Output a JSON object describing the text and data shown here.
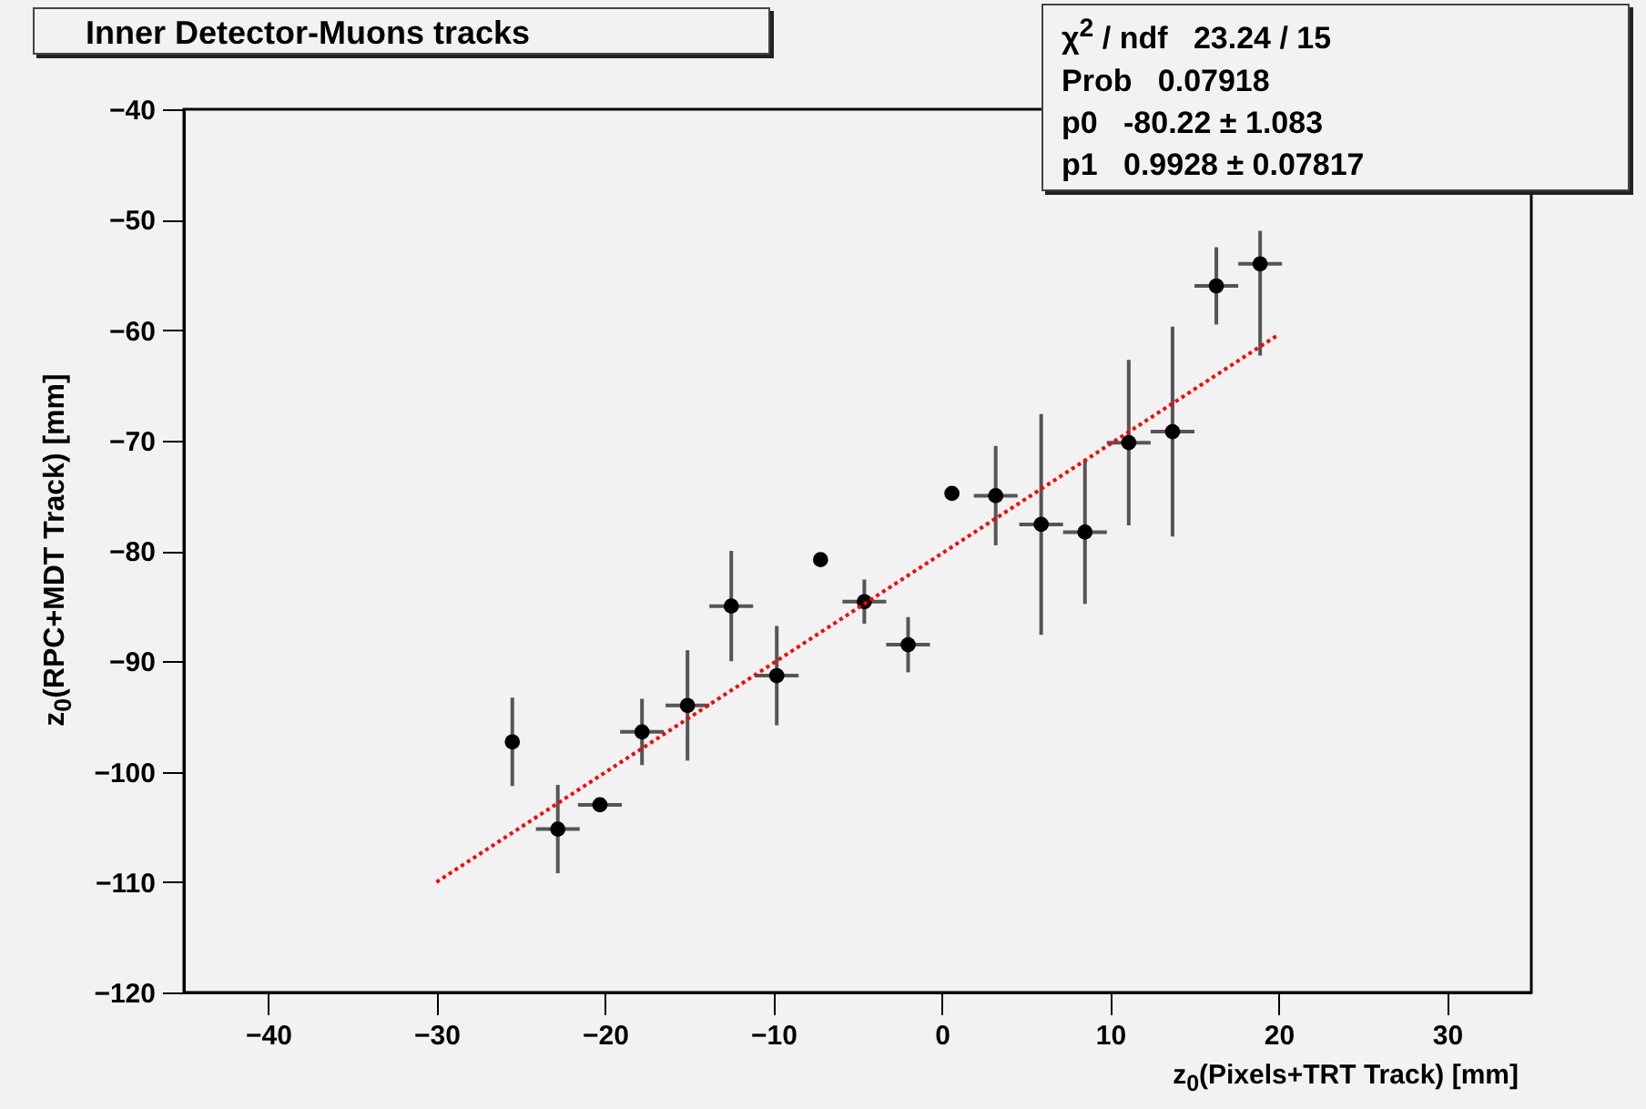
{
  "chart_data": {
    "type": "scatter",
    "title": "Inner Detector-Muons tracks",
    "xlabel": "z$_{0}$(Pixels+TRT Track) [mm]",
    "ylabel": "z$_{0}$(RPC+MDT Track) [mm]",
    "annotations": [
      "χ$^{2}$ / ndf   23.24 / 15",
      "Prob   0.07918",
      "p0   -80.22 ± 1.083",
      "p1   0.9928 ± 0.07817"
    ],
    "xlim": [
      -45,
      35
    ],
    "xticks": [
      -40,
      -30,
      -20,
      -10,
      0,
      10,
      20,
      30
    ],
    "ylim": [
      -120,
      -40
    ],
    "yticks": [
      -120,
      -110,
      -100,
      -90,
      -80,
      -70,
      -60,
      -50,
      -40
    ],
    "marker": "circle",
    "series": [
      {
        "color": "#000000",
        "x": [
          -25.5,
          -22.8,
          -20.3,
          -17.8,
          -15.1,
          -12.5,
          -9.8,
          -7.2,
          -4.6,
          -2.0,
          0.6,
          3.2,
          5.9,
          8.5,
          11.1,
          13.7,
          16.3,
          18.9
        ],
        "values": [
          -97.3,
          -105.2,
          -103.0,
          -96.4,
          -94.0,
          -85.0,
          -91.3,
          -80.8,
          -84.6,
          -88.5,
          -74.8,
          -75.0,
          -77.6,
          -78.3,
          -70.2,
          -69.2,
          -56.0,
          -54.0
        ],
        "errors": [
          4,
          4,
          null,
          3,
          5,
          5,
          4.5,
          null,
          2,
          2.5,
          null,
          4.5,
          10,
          6.5,
          7.5,
          9.5,
          3.5,
          [
            -62.3,
            -51
          ]
        ],
        "xerrors": [
          null,
          1.3,
          1.3,
          1.3,
          1.3,
          1.3,
          1.3,
          null,
          1.3,
          1.3,
          null,
          1.3,
          1.3,
          1.3,
          1.3,
          1.3,
          1.3,
          1.3
        ]
      },
      {
        "type": "line",
        "color": "#ff0000",
        "x": [
          -30,
          20
        ],
        "values": [
          -110.0,
          -60.4
        ],
        "line_style": "dotted",
        "marker": "none"
      }
    ]
  }
}
